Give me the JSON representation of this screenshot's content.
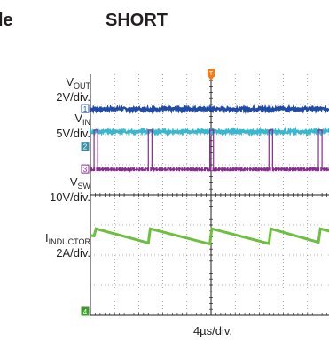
{
  "header": {
    "left_fragment": "le",
    "title": "SHORT"
  },
  "chart_data": {
    "type": "line",
    "title": "SHORT",
    "xlabel": "4µs/div.",
    "ylabel": "",
    "grid": true,
    "x_divisions": 10,
    "y_divisions": 8,
    "trigger_marker": "T",
    "channels": [
      {
        "name": "VOUT",
        "scale": "2V/div.",
        "marker": "1",
        "color": "#1f4aa8",
        "baseline_div": 6.85,
        "waveform": "dc",
        "noise_div": 0.05
      },
      {
        "name": "VIN",
        "scale": "5V/div.",
        "marker": "",
        "color": "#38b7cf",
        "baseline_div": 6.1,
        "waveform": "dc",
        "noise_div": 0.05
      },
      {
        "name": "VSW",
        "scale": "10V/div.",
        "marker": "3",
        "color": "#8a2b92",
        "baseline_div": 4.85,
        "waveform": "pulse",
        "pulse_high_div": 1.3,
        "pulse_width_div": 0.15,
        "pulse_x_div": [
          0.15,
          2.4,
          4.95,
          7.4,
          9.45
        ]
      },
      {
        "name": "IINDUCTOR",
        "scale": "2A/div.",
        "marker": "4",
        "color": "#6cc03e",
        "baseline_div": 2.65,
        "waveform": "sawtooth",
        "ripple_div": 0.5,
        "reset_x_div": [
          0.15,
          2.4,
          4.95,
          7.4,
          9.45
        ]
      }
    ],
    "ch2_marker": "2"
  },
  "labels": {
    "vout_main": "V",
    "vout_sub": "OUT",
    "vout_scale": "2V/div.",
    "vin_main": "V",
    "vin_sub": "IN",
    "vin_scale": "5V/div.",
    "vsw_main": "V",
    "vsw_sub": "SW",
    "vsw_scale": "10V/div.",
    "il_main": "I",
    "il_sub": "INDUCTOR",
    "il_scale": "2A/div."
  }
}
